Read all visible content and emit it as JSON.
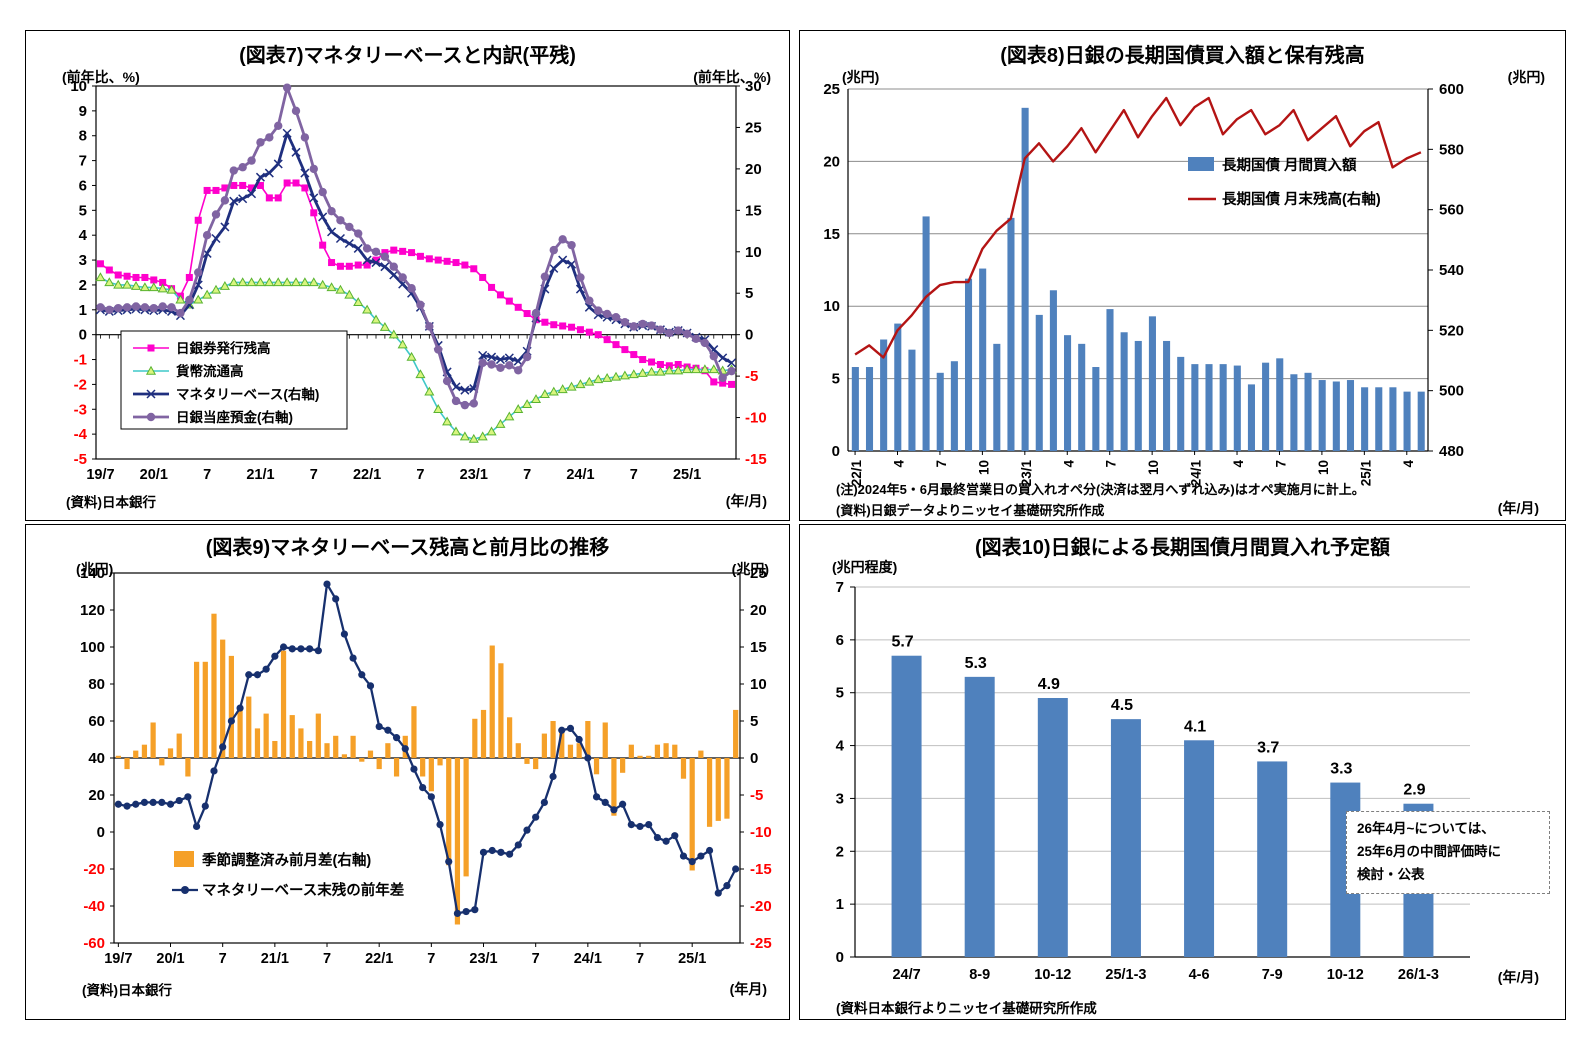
{
  "charts": {
    "chart7": {
      "title": "(図表7)マネタリーベースと内訳(平残)",
      "left_unit": "(前年比、%)",
      "right_unit": "(前年比、%)",
      "x_unit": "(年/月)",
      "source": "(資料)日本銀行",
      "chart_data": {
        "type": "line",
        "x_months": 72,
        "x_start": "19/7",
        "x_tick_labels": [
          "19/7",
          "20/1",
          "7",
          "21/1",
          "7",
          "22/1",
          "7",
          "23/1",
          "7",
          "24/1",
          "7",
          "25/1"
        ],
        "x_tick_indices": [
          0,
          6,
          12,
          18,
          24,
          30,
          36,
          42,
          48,
          54,
          60,
          66
        ],
        "left_axis": {
          "min": -5,
          "max": 10,
          "step": 1
        },
        "right_axis": {
          "min": -15,
          "max": 30,
          "step": 5
        },
        "negative_label_color": "#FF0000",
        "series": [
          {
            "name": "日銀券発行残高",
            "axis": "left",
            "color": "#FF00CC",
            "marker": "square",
            "values": [
              2.85,
              2.6,
              2.4,
              2.35,
              2.3,
              2.3,
              2.2,
              2.1,
              1.85,
              1.55,
              2.3,
              4.6,
              5.8,
              5.8,
              5.9,
              6.0,
              6.0,
              5.9,
              6.0,
              5.5,
              5.5,
              6.1,
              6.1,
              5.9,
              4.9,
              3.6,
              2.9,
              2.75,
              2.75,
              2.8,
              2.8,
              3.0,
              3.3,
              3.4,
              3.35,
              3.3,
              3.15,
              3.05,
              3.0,
              2.95,
              2.9,
              2.8,
              2.65,
              2.3,
              1.9,
              1.6,
              1.35,
              1.1,
              0.85,
              0.6,
              0.5,
              0.4,
              0.35,
              0.3,
              0.2,
              0.1,
              0.0,
              -0.2,
              -0.4,
              -0.6,
              -0.8,
              -1.0,
              -1.1,
              -1.2,
              -1.25,
              -1.2,
              -1.3,
              -1.35,
              -1.45,
              -1.9,
              -1.95,
              -2.0
            ]
          },
          {
            "name": "貨幣流通高",
            "axis": "left",
            "color": "#3FC8C8",
            "marker": "triangle",
            "marker_fill": "#D9F57F",
            "marker_stroke": "#59B331",
            "values": [
              2.3,
              2.1,
              2.0,
              2.0,
              1.95,
              1.9,
              1.9,
              1.85,
              1.8,
              1.4,
              1.2,
              1.4,
              1.6,
              1.8,
              1.95,
              2.1,
              2.1,
              2.1,
              2.1,
              2.1,
              2.1,
              2.1,
              2.1,
              2.1,
              2.1,
              2.0,
              1.9,
              1.8,
              1.6,
              1.3,
              1.0,
              0.6,
              0.3,
              0.0,
              -0.4,
              -0.9,
              -1.6,
              -2.3,
              -3.0,
              -3.5,
              -3.9,
              -4.1,
              -4.2,
              -4.1,
              -3.9,
              -3.6,
              -3.3,
              -3.0,
              -2.8,
              -2.6,
              -2.4,
              -2.3,
              -2.2,
              -2.1,
              -2.0,
              -1.9,
              -1.8,
              -1.75,
              -1.7,
              -1.65,
              -1.6,
              -1.55,
              -1.5,
              -1.5,
              -1.45,
              -1.45,
              -1.4,
              -1.4,
              -1.4,
              -1.4,
              -1.45,
              -1.4
            ]
          },
          {
            "name": "マネタリーベース(右軸)",
            "axis": "right",
            "color": "#1F2F7F",
            "marker": "x",
            "values": [
              3.0,
              2.8,
              2.9,
              3.0,
              3.1,
              3.0,
              2.9,
              3.0,
              2.8,
              2.3,
              3.6,
              6.0,
              9.8,
              11.6,
              13.0,
              16.1,
              16.4,
              17.0,
              19.0,
              19.5,
              20.6,
              24.3,
              22.0,
              19.5,
              16.5,
              14.2,
              12.4,
              11.6,
              11.0,
              10.4,
              9.0,
              8.7,
              8.2,
              7.2,
              6.1,
              5.0,
              3.3,
              1.0,
              -1.3,
              -4.5,
              -6.3,
              -6.7,
              -6.5,
              -2.5,
              -2.7,
              -3.0,
              -2.8,
              -3.2,
              -2.0,
              2.0,
              5.5,
              8.0,
              9.0,
              8.5,
              5.5,
              3.3,
              2.4,
              2.1,
              1.8,
              1.3,
              0.9,
              1.1,
              1.0,
              0.6,
              0.3,
              0.5,
              0.2,
              -0.3,
              -0.6,
              -1.8,
              -2.8,
              -3.4
            ]
          },
          {
            "name": "日銀当座預金(右軸)",
            "axis": "right",
            "color": "#8064A2",
            "marker": "circle",
            "values": [
              3.3,
              3.0,
              3.2,
              3.3,
              3.4,
              3.3,
              3.2,
              3.4,
              3.3,
              2.6,
              4.2,
              7.5,
              12.0,
              14.5,
              16.2,
              19.8,
              20.2,
              21.0,
              23.2,
              23.8,
              25.2,
              29.8,
              27.0,
              23.8,
              20.0,
              17.2,
              14.9,
              13.8,
              13.0,
              12.2,
              10.4,
              10.0,
              9.4,
              8.2,
              6.9,
              5.6,
              3.6,
              1.0,
              -1.8,
              -5.6,
              -8.0,
              -8.5,
              -8.3,
              -3.4,
              -3.6,
              -4.0,
              -3.7,
              -4.3,
              -2.7,
              2.6,
              7.0,
              10.2,
              11.5,
              10.8,
              6.9,
              4.1,
              2.9,
              2.5,
              2.1,
              1.5,
              1.0,
              1.3,
              1.1,
              0.6,
              0.2,
              0.5,
              0.1,
              -0.5,
              -1.0,
              -2.6,
              -5.2,
              -4.4
            ]
          }
        ]
      }
    },
    "chart8": {
      "title": "(図表8)日銀の長期国債買入額と保有残高",
      "left_unit": "(兆円)",
      "right_unit": "(兆円)",
      "x_unit": "(年/月)",
      "note": "(注)2024年5・6月最終営業日の買入れオペ分(決済は翌月へずれ込み)はオペ実施月に計上。",
      "source": "(資料)日銀データよりニッセイ基礎研究所作成",
      "chart_data": {
        "type": "bar+line",
        "x_months": 41,
        "x_start": "22/1",
        "x_tick_labels": [
          "22/1",
          "4",
          "7",
          "10",
          "23/1",
          "4",
          "7",
          "10",
          "24/1",
          "4",
          "7",
          "10",
          "25/1",
          "4"
        ],
        "x_tick_indices": [
          0,
          3,
          6,
          9,
          12,
          15,
          18,
          21,
          24,
          27,
          30,
          33,
          36,
          39
        ],
        "left_axis": {
          "min": 0,
          "max": 25,
          "step": 5
        },
        "right_axis": {
          "min": 480,
          "max": 600,
          "step": 20
        },
        "bar_series": {
          "name": "長期国債 月間買入額",
          "axis": "left",
          "color": "#4F81BD",
          "values": [
            5.8,
            5.8,
            7.7,
            8.8,
            7.0,
            16.2,
            5.4,
            6.2,
            11.9,
            12.6,
            7.4,
            16.1,
            23.7,
            9.4,
            11.1,
            8.0,
            7.4,
            5.8,
            9.8,
            8.2,
            7.6,
            9.3,
            7.6,
            6.5,
            6.0,
            6.0,
            6.0,
            5.9,
            4.6,
            6.1,
            6.4,
            5.3,
            5.4,
            4.9,
            4.8,
            4.9,
            4.4,
            4.4,
            4.4,
            4.1,
            4.1
          ]
        },
        "line_series": {
          "name": "長期国債 月末残高(右軸)",
          "axis": "right",
          "color": "#B41414",
          "values": [
            512,
            515,
            511,
            520,
            525,
            531,
            535,
            536,
            536,
            547,
            553,
            557,
            577,
            582,
            576,
            581,
            587,
            579,
            586,
            593,
            584,
            591,
            597,
            588,
            594,
            597,
            585,
            590,
            593,
            585,
            588,
            593,
            583,
            587,
            591,
            581,
            586,
            589,
            574,
            577,
            579
          ]
        }
      }
    },
    "chart9": {
      "title": "(図表9)マネタリーベース残高と前月比の推移",
      "left_unit": "(兆円)",
      "right_unit": "(兆円)",
      "x_unit": "(年月)",
      "source": "(資料)日本銀行",
      "chart_data": {
        "type": "bar+line",
        "x_months": 72,
        "x_start": "19/7",
        "x_tick_labels": [
          "19/7",
          "20/1",
          "7",
          "21/1",
          "7",
          "22/1",
          "7",
          "23/1",
          "7",
          "24/1",
          "7",
          "25/1"
        ],
        "x_tick_indices": [
          0,
          6,
          12,
          18,
          24,
          30,
          36,
          42,
          48,
          54,
          60,
          66
        ],
        "left_axis": {
          "min": -60,
          "max": 140,
          "step": 20
        },
        "right_axis": {
          "min": -25,
          "max": 25,
          "step": 5
        },
        "negative_label_color": "#FF0000",
        "bar_series": {
          "name": "季節調整済み前月差(右軸)",
          "axis": "right",
          "color": "#F5A028",
          "values": [
            0.3,
            -1.5,
            1.0,
            1.8,
            4.8,
            -1.0,
            1.3,
            3.3,
            -2.5,
            13.0,
            13.0,
            19.5,
            16.0,
            13.8,
            7.0,
            8.3,
            4.0,
            6.0,
            2.3,
            14.5,
            5.8,
            4.0,
            2.3,
            6.0,
            2.0,
            3.0,
            0.5,
            3.0,
            -0.5,
            1.0,
            -1.5,
            2.0,
            -2.5,
            3.0,
            7.0,
            -2.5,
            -4.5,
            -1.0,
            -14.5,
            -22.5,
            -16.0,
            5.3,
            6.5,
            15.2,
            12.8,
            5.5,
            2.0,
            -0.8,
            -1.5,
            3.3,
            5.0,
            3.8,
            1.8,
            2.0,
            5.0,
            -2.2,
            4.8,
            -7.8,
            -2.0,
            1.8,
            0.3,
            0.3,
            1.8,
            2.0,
            1.8,
            -2.8,
            -15.2,
            1.0,
            -9.3,
            -8.5,
            -8.2,
            6.5
          ]
        },
        "line_series": {
          "name": "マネタリーベース末残の前年差",
          "axis": "left",
          "color": "#17306E",
          "values": [
            15,
            14,
            15,
            16,
            16,
            16,
            15,
            17,
            19,
            3,
            14,
            33,
            46,
            60,
            67,
            85,
            85,
            88,
            95,
            100,
            99,
            99,
            99,
            98,
            134,
            126,
            107,
            94,
            85,
            79,
            57,
            55,
            51,
            45,
            34,
            24,
            19,
            4,
            -16,
            -44,
            -43,
            -42,
            -11,
            -10,
            -11,
            -12,
            -7,
            1,
            8,
            16,
            30,
            55,
            56,
            50,
            40,
            19,
            16,
            12,
            15,
            4,
            3,
            4,
            -3,
            -5,
            -2,
            -13,
            -16,
            -13,
            -10,
            -33,
            -29,
            -20
          ]
        }
      }
    },
    "chart10": {
      "title": "(図表10)日銀による長期国債月間買入れ予定額",
      "left_unit": "(兆円程度)",
      "x_unit": "(年/月)",
      "source": "(資料日本銀行よりニッセイ基礎研究所作成",
      "annotation": [
        "26年4月~については、",
        "25年6月の中間評価時に",
        "検討・公表"
      ],
      "chart_data": {
        "type": "bar",
        "categories": [
          "24/7",
          "8-9",
          "10-12",
          "25/1-3",
          "4-6",
          "7-9",
          "10-12",
          "26/1-3"
        ],
        "values": [
          5.7,
          5.3,
          4.9,
          4.5,
          4.1,
          3.7,
          3.3,
          2.9
        ],
        "bar_color": "#4F81BD",
        "y_axis": {
          "min": 0,
          "max": 7,
          "step": 1
        }
      }
    }
  }
}
